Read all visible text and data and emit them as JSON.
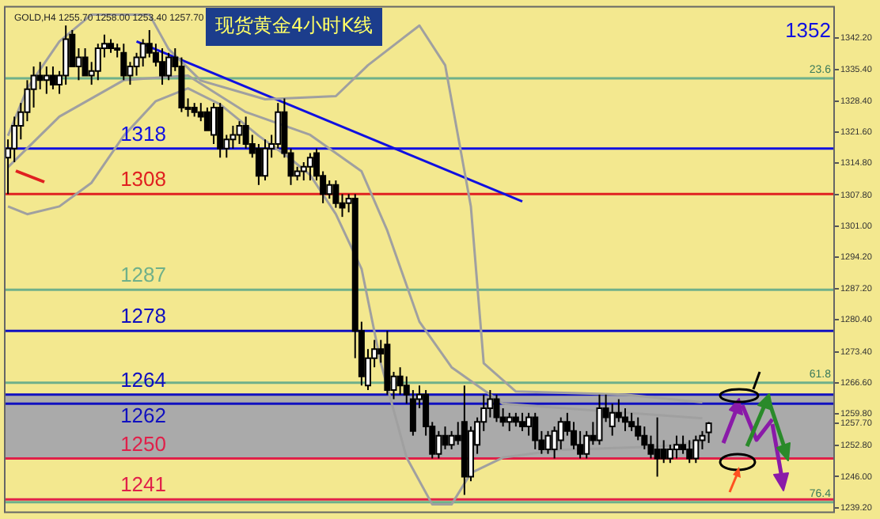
{
  "chart_data": {
    "type": "candlestick",
    "title": "现货黄金4小时K线",
    "categories": [
      null,
      null,
      null,
      null,
      null,
      null,
      null,
      null,
      null,
      null,
      null,
      null,
      null,
      null,
      null,
      null,
      null,
      null,
      null,
      null,
      null,
      null,
      null,
      null,
      null,
      null,
      null,
      null,
      null,
      null,
      null,
      null,
      null,
      null,
      null,
      null,
      null,
      null,
      null,
      null,
      null,
      null,
      null,
      null,
      null,
      null,
      null,
      null,
      null,
      null,
      null,
      null,
      null,
      null,
      null,
      null,
      null,
      null,
      null,
      null,
      null,
      null,
      null,
      null,
      null,
      null,
      null,
      null,
      null,
      null,
      null,
      null,
      null,
      null,
      null,
      null,
      null,
      null,
      null,
      null,
      null,
      null,
      null,
      null,
      null,
      null,
      null,
      null,
      null,
      null,
      null,
      null,
      null,
      null,
      null,
      null,
      null,
      null,
      null,
      null,
      null,
      null,
      null,
      null,
      null,
      null,
      null,
      null,
      null,
      null,
      null,
      null,
      null,
      null,
      null,
      null,
      null,
      null,
      null,
      null,
      null,
      null,
      null,
      null,
      null,
      null,
      null,
      null,
      null
    ],
    "ohlc": [
      [
        1316,
        1320,
        1308,
        1318
      ],
      [
        1318,
        1325,
        1315,
        1323
      ],
      [
        1323,
        1328,
        1320,
        1326
      ],
      [
        1326,
        1333,
        1324,
        1331
      ],
      [
        1331,
        1336,
        1327,
        1334
      ],
      [
        1334,
        1337,
        1331,
        1333
      ],
      [
        1333,
        1336,
        1330,
        1334
      ],
      [
        1334,
        1336,
        1331,
        1332
      ],
      [
        1332,
        1335,
        1330,
        1334
      ],
      [
        1334,
        1345,
        1332,
        1342
      ],
      [
        1343,
        1344,
        1336,
        1336
      ],
      [
        1336,
        1340,
        1333,
        1338
      ],
      [
        1338,
        1340,
        1334,
        1334
      ],
      [
        1334,
        1337,
        1332,
        1335
      ],
      [
        1335,
        1341,
        1333,
        1340
      ],
      [
        1340,
        1343,
        1338,
        1341
      ],
      [
        1341,
        1342,
        1339,
        1340
      ],
      [
        1340,
        1341,
        1338,
        1340
      ],
      [
        1339,
        1341,
        1333,
        1334
      ],
      [
        1334,
        1337,
        1332,
        1336
      ],
      [
        1336,
        1339,
        1334,
        1338
      ],
      [
        1338,
        1342,
        1336,
        1341
      ],
      [
        1341,
        1344,
        1338,
        1339
      ],
      [
        1339,
        1341,
        1336,
        1337
      ],
      [
        1337,
        1340,
        1332,
        1334
      ],
      [
        1334,
        1339,
        1333,
        1338
      ],
      [
        1338,
        1340,
        1335,
        1336
      ],
      [
        1336,
        1338,
        1326,
        1327
      ],
      [
        1327,
        1329,
        1325,
        1327
      ],
      [
        1327,
        1328,
        1325,
        1326
      ],
      [
        1326,
        1328,
        1324,
        1325
      ],
      [
        1326,
        1327,
        1322,
        1322
      ],
      [
        1321,
        1328,
        1319,
        1327
      ],
      [
        1327,
        1328,
        1316,
        1318
      ],
      [
        1318,
        1321,
        1316,
        1320
      ],
      [
        1320,
        1323,
        1318,
        1321
      ],
      [
        1321,
        1324,
        1319,
        1323
      ],
      [
        1323,
        1325,
        1318,
        1319
      ],
      [
        1319,
        1321,
        1316,
        1317
      ],
      [
        1318,
        1319,
        1310,
        1312
      ],
      [
        1312,
        1320,
        1311,
        1318
      ],
      [
        1318,
        1321,
        1316,
        1319
      ],
      [
        1319,
        1328,
        1318,
        1326
      ],
      [
        1326,
        1329,
        1316,
        1317
      ],
      [
        1317,
        1318,
        1310,
        1312
      ],
      [
        1312,
        1314,
        1311,
        1313
      ],
      [
        1313,
        1315,
        1311,
        1314
      ],
      [
        1314,
        1317,
        1311,
        1316
      ],
      [
        1317,
        1318,
        1311,
        1312
      ],
      [
        1312,
        1313,
        1306,
        1308
      ],
      [
        1308,
        1311,
        1307,
        1310
      ],
      [
        1310,
        1311,
        1305,
        1306
      ],
      [
        1306,
        1308,
        1303,
        1305
      ],
      [
        1306,
        1308,
        1304,
        1307
      ],
      [
        1307,
        1308,
        1272,
        1278
      ],
      [
        1278,
        1280,
        1266,
        1268
      ],
      [
        1266,
        1274,
        1265,
        1272
      ],
      [
        1272,
        1276,
        1270,
        1274
      ],
      [
        1274,
        1276,
        1271,
        1273
      ],
      [
        1275,
        1278,
        1264,
        1265
      ],
      [
        1265,
        1269,
        1263,
        1268
      ],
      [
        1268,
        1270,
        1264,
        1266
      ],
      [
        1266,
        1268,
        1262,
        1264
      ],
      [
        1263,
        1265,
        1255,
        1256
      ],
      [
        1263,
        1266,
        1261,
        1264
      ],
      [
        1264,
        1265,
        1255,
        1257
      ],
      [
        1257,
        1258,
        1250,
        1251
      ],
      [
        1251,
        1256,
        1250,
        1255
      ],
      [
        1255,
        1257,
        1252,
        1253
      ],
      [
        1253,
        1256,
        1252,
        1255
      ],
      [
        1255,
        1258,
        1253,
        1254
      ],
      [
        1258,
        1266,
        1242,
        1246
      ],
      [
        1246,
        1257,
        1245,
        1256
      ],
      [
        1253,
        1259,
        1251,
        1258
      ],
      [
        1258,
        1264,
        1256,
        1261
      ],
      [
        1261,
        1265,
        1259,
        1263
      ],
      [
        1263,
        1264,
        1258,
        1259
      ],
      [
        1259,
        1261,
        1257,
        1258
      ],
      [
        1258,
        1260,
        1256,
        1259
      ],
      [
        1259,
        1260,
        1257,
        1258
      ],
      [
        1258,
        1260,
        1256,
        1257
      ],
      [
        1257,
        1260,
        1255,
        1259
      ],
      [
        1259,
        1260,
        1252,
        1254
      ],
      [
        1254,
        1256,
        1251,
        1252
      ],
      [
        1252,
        1256,
        1251,
        1255
      ],
      [
        1252,
        1257,
        1250,
        1256
      ],
      [
        1254,
        1259,
        1252,
        1258
      ],
      [
        1258,
        1260,
        1255,
        1256
      ],
      [
        1256,
        1258,
        1252,
        1253
      ],
      [
        1253,
        1256,
        1250,
        1251
      ],
      [
        1251,
        1256,
        1250,
        1255
      ],
      [
        1255,
        1258,
        1253,
        1254
      ],
      [
        1254,
        1264,
        1253,
        1261
      ],
      [
        1261,
        1264,
        1258,
        1259
      ],
      [
        1257,
        1262,
        1255,
        1260
      ],
      [
        1260,
        1263,
        1258,
        1259
      ],
      [
        1259,
        1261,
        1256,
        1258
      ],
      [
        1258,
        1260,
        1256,
        1257
      ],
      [
        1257,
        1259,
        1254,
        1255
      ],
      [
        1255,
        1257,
        1252,
        1253
      ],
      [
        1253,
        1255,
        1250,
        1251
      ],
      [
        1252,
        1259,
        1246,
        1250
      ],
      [
        1252,
        1254,
        1249,
        1250
      ],
      [
        1250,
        1253,
        1249,
        1252
      ],
      [
        1252,
        1255,
        1250,
        1253
      ],
      [
        1253,
        1255,
        1251,
        1252
      ],
      [
        1252,
        1254,
        1249,
        1250
      ],
      [
        1250,
        1255,
        1249,
        1254
      ],
      [
        1254,
        1256,
        1252,
        1255
      ],
      [
        1255.7,
        1258,
        1253.4,
        1257.7
      ],
      null,
      null,
      null,
      null,
      null,
      null,
      null,
      null,
      null,
      null,
      null,
      null,
      null,
      null,
      null,
      null,
      null,
      null,
      null
    ],
    "series": [
      {
        "type": "line",
        "color": "#a0a0a0",
        "values": [
          1320.8,
          null,
          null,
          1331.2,
          null,
          null,
          null,
          null,
          1341.5,
          null,
          null,
          null,
          null,
          1347.4,
          null,
          null,
          null,
          null,
          null,
          null,
          null,
          null,
          1347.4,
          null,
          null,
          1339.8,
          null,
          null,
          null,
          null,
          1332.9,
          null,
          null,
          null,
          null,
          null,
          null,
          null,
          null,
          null,
          1328.8,
          null,
          null,
          null,
          null,
          null,
          null,
          null,
          null,
          null,
          null,
          1329.5,
          null,
          null,
          null,
          null,
          1336.3,
          null,
          null,
          null,
          null,
          null,
          null,
          null,
          1345,
          null,
          null,
          null,
          1336.3,
          null,
          null,
          null,
          1305.3,
          null,
          1270.9,
          null,
          null,
          null,
          null,
          1264.7,
          null,
          null,
          null,
          null,
          null,
          null,
          null,
          null,
          null,
          null,
          null,
          null,
          null,
          null,
          null,
          null,
          1264,
          null,
          null,
          null,
          null,
          null,
          null,
          null,
          null,
          null,
          null,
          null,
          1262.3,
          null,
          null,
          null,
          null,
          null,
          null,
          null,
          null,
          null,
          null,
          null,
          null,
          null,
          null,
          null,
          null,
          null,
          null,
          null,
          null
        ]
      },
      {
        "type": "line",
        "color": "#a0a0a0",
        "values": [
          1313.9,
          null,
          null,
          null,
          null,
          null,
          null,
          null,
          1325,
          null,
          null,
          null,
          null,
          null,
          null,
          null,
          null,
          null,
          1333,
          null,
          null,
          null,
          null,
          null,
          null,
          null,
          null,
          null,
          1334,
          null,
          null,
          null,
          null,
          null,
          null,
          null,
          null,
          1326,
          null,
          null,
          null,
          null,
          null,
          null,
          null,
          null,
          null,
          1321,
          null,
          null,
          null,
          null,
          null,
          null,
          null,
          1313,
          null,
          null,
          null,
          1300,
          null,
          null,
          null,
          null,
          1280,
          null,
          null,
          null,
          null,
          1270,
          null,
          null,
          null,
          null,
          null,
          null,
          null,
          1262,
          null,
          null,
          null,
          null,
          null,
          null,
          null,
          null,
          null,
          null,
          null,
          null,
          null,
          null,
          null,
          null,
          null,
          null,
          null,
          null,
          null,
          null,
          null,
          null,
          null,
          null,
          null,
          null,
          null,
          null,
          1258.8,
          null,
          null,
          null,
          null,
          null,
          null,
          null,
          null,
          null,
          null,
          null,
          null,
          null,
          null,
          null,
          null,
          null,
          null,
          null,
          null
        ]
      },
      {
        "type": "line",
        "color": "#a0a0a0",
        "values": [
          1305.3,
          null,
          null,
          1303.6,
          null,
          null,
          null,
          null,
          1305.3,
          null,
          null,
          null,
          null,
          1310.5,
          null,
          null,
          null,
          null,
          1320.8,
          null,
          null,
          null,
          null,
          1328.4,
          null,
          null,
          null,
          null,
          1331.2,
          null,
          null,
          null,
          null,
          1327.7,
          null,
          null,
          null,
          null,
          null,
          1320.8,
          null,
          null,
          null,
          null,
          1315.7,
          null,
          null,
          1312.2,
          null,
          null,
          null,
          1303.6,
          null,
          null,
          null,
          1291.6,
          null,
          null,
          1270.9,
          null,
          null,
          null,
          1250.2,
          null,
          null,
          null,
          1239.9,
          null,
          null,
          1239.9,
          null,
          null,
          1246.8,
          null,
          null,
          null,
          null,
          1250.2,
          null,
          null,
          null,
          null,
          null,
          null,
          null,
          null,
          1251.9,
          null,
          null,
          null,
          null,
          null,
          null,
          null,
          null,
          null,
          null,
          null,
          null,
          null,
          null,
          1252.6,
          null,
          null,
          null,
          null,
          null,
          null,
          1253.7,
          null,
          null,
          null,
          null,
          null,
          null,
          null,
          null,
          null,
          null,
          null,
          null,
          null,
          null,
          null,
          null,
          null,
          null,
          null,
          null
        ]
      },
      {
        "type": "line",
        "color": "#1010e0",
        "values": [
          null,
          null,
          null,
          null,
          null,
          null,
          null,
          null,
          null,
          null,
          null,
          null,
          null,
          null,
          null,
          null,
          null,
          null,
          null,
          null,
          1341.5,
          null,
          null,
          null,
          null,
          null,
          null,
          null,
          null,
          null,
          null,
          null,
          null,
          null,
          null,
          null,
          null,
          null,
          null,
          null,
          null,
          null,
          null,
          null,
          null,
          null,
          null,
          null,
          null,
          null,
          null,
          null,
          null,
          null,
          null,
          null,
          null,
          null,
          null,
          null,
          null,
          null,
          null,
          null,
          null,
          null,
          null,
          null,
          null,
          null,
          null,
          null,
          null,
          null,
          null,
          null,
          null,
          null,
          null,
          null,
          1306.4,
          null,
          null,
          null,
          null,
          null,
          null,
          null,
          null,
          null,
          null,
          null,
          null,
          null,
          null,
          null,
          null,
          null,
          null,
          null,
          null,
          null,
          null,
          null,
          null,
          null,
          null,
          null,
          null,
          null,
          null,
          null,
          null,
          null,
          null,
          null,
          null,
          null,
          null,
          null,
          null,
          null,
          null,
          null,
          null,
          null,
          null,
          null,
          null
        ]
      }
    ],
    "ylim": [
      1238.2,
      1349.1
    ],
    "yticks": [
      {
        "value": 1342.2,
        "label": "1342.20"
      },
      {
        "value": 1335.4,
        "label": "1335.40"
      },
      {
        "value": 1328.4,
        "label": "1328.40"
      },
      {
        "value": 1321.6,
        "label": "1321.60"
      },
      {
        "value": 1314.8,
        "label": "1314.80"
      },
      {
        "value": 1307.8,
        "label": "1307.80"
      },
      {
        "value": 1301,
        "label": "1301.00"
      },
      {
        "value": 1294.2,
        "label": "1294.20"
      },
      {
        "value": 1287.2,
        "label": "1287.20"
      },
      {
        "value": 1280.4,
        "label": "1280.40"
      },
      {
        "value": 1273.4,
        "label": "1273.40"
      },
      {
        "value": 1266.6,
        "label": "1266.60"
      },
      {
        "value": 1259.8,
        "label": "1259.80"
      },
      {
        "value": 1257.7,
        "label": "1257.70"
      },
      {
        "value": 1252.8,
        "label": "1252.80"
      },
      {
        "value": 1246,
        "label": "1246.00"
      },
      {
        "value": 1239.2,
        "label": "1239.20"
      }
    ],
    "tick_labels": "y",
    "bands": [
      {
        "axis": "y",
        "from": 1250,
        "to": 1264,
        "color": "#aaaaaa"
      }
    ],
    "ref_lines": [
      {
        "axis": "y",
        "value": 1333.4,
        "color": "#6fb08a"
      },
      {
        "axis": "y",
        "value": 1318,
        "label": "1318",
        "color": "#1010e0"
      },
      {
        "axis": "y",
        "value": 1308,
        "label": "1308",
        "color": "#e02020"
      },
      {
        "axis": "y",
        "value": 1287,
        "label": "1287",
        "color": "#6fb08a"
      },
      {
        "axis": "y",
        "value": 1278,
        "label": "1278",
        "color": "#1010c0"
      },
      {
        "axis": "y",
        "value": 1266.6,
        "color": "#6fb08a"
      },
      {
        "axis": "y",
        "value": 1264,
        "label": "1264",
        "color": "#1010c0"
      },
      {
        "axis": "y",
        "value": 1262,
        "label": "1262",
        "color": "#1010c0"
      },
      {
        "axis": "y",
        "value": 1250,
        "label": "1250",
        "color": "#e0204a"
      },
      {
        "axis": "y",
        "value": 1241,
        "label": "1241",
        "color": "#e0204a"
      },
      {
        "axis": "y",
        "value": 1240.4,
        "color": "#6fb08a"
      }
    ],
    "annotations": [
      "GOLD,H4 1255.70 1258.00 1253.40 1257.70",
      "1352",
      {
        "text": "23.6",
        "y": 1333.4
      },
      {
        "text": "61.8",
        "y": 1266.6
      },
      {
        "text": "76.4",
        "y": 1240.4
      }
    ],
    "legend": false
  }
}
